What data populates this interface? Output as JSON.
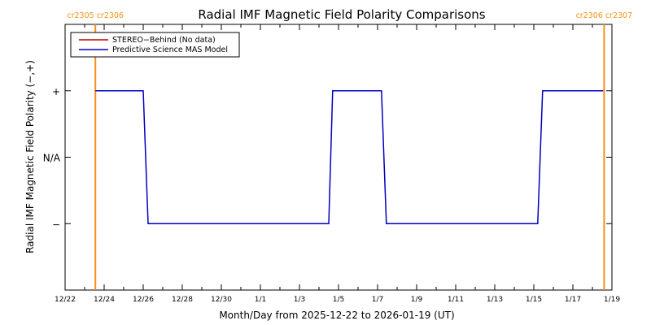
{
  "chart_data": {
    "type": "line",
    "title": "Radial IMF Magnetic Field Polarity Comparisons",
    "xlabel": "Month/Day from 2025-12-22 to 2026-01-19 (UT)",
    "ylabel": "Radial IMF Magnetic Field Polarity (−,+)",
    "x_domain_days": [
      0,
      28
    ],
    "x_tick_labels": [
      "12/22",
      "12/24",
      "12/26",
      "12/28",
      "12/30",
      "1/1",
      "1/3",
      "1/5",
      "1/7",
      "1/9",
      "1/11",
      "1/13",
      "1/15",
      "1/17",
      "1/19"
    ],
    "y_tick_labels": [
      "+",
      "N/A",
      "−"
    ],
    "ylim": [
      -2,
      2
    ],
    "grid": false,
    "legend_placement": "top-left",
    "markers": [
      {
        "day": 1.55,
        "label": "cr2305 cr2306"
      },
      {
        "day": 27.6,
        "label": "cr2306 cr2307"
      }
    ],
    "series": [
      {
        "name": "STEREO−Behind (No data)",
        "color": "#c00000",
        "points": []
      },
      {
        "name": "Predictive Science MAS Model",
        "color": "#0000c0",
        "points": [
          [
            1.55,
            1
          ],
          [
            4.0,
            1
          ],
          [
            4.25,
            -1
          ],
          [
            13.5,
            -1
          ],
          [
            13.7,
            1
          ],
          [
            16.2,
            1
          ],
          [
            16.45,
            -1
          ],
          [
            24.2,
            -1
          ],
          [
            24.45,
            1
          ],
          [
            27.55,
            1
          ]
        ]
      }
    ],
    "colors": {
      "marker": "#f39018",
      "stereo": "#c00000",
      "model": "#0000c0"
    }
  }
}
